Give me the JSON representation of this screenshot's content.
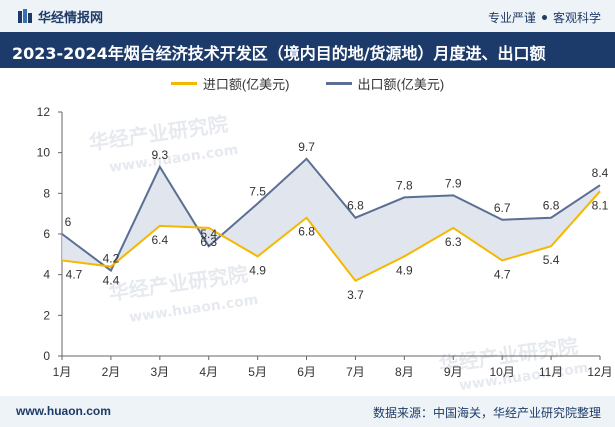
{
  "header": {
    "brand": "华经情报网",
    "slogan_left": "专业严谨",
    "slogan_right": "客观科学",
    "title": "2023-2024年烟台经济技术开发区（境内目的地/货源地）月度进、出口额"
  },
  "watermarks": [
    "华经产业研究院",
    "www.huaon.com"
  ],
  "footer": {
    "website": "www.huaon.com",
    "source": "数据来源：中国海关，华经产业研究院整理"
  },
  "colors": {
    "import": "#f5b800",
    "export": "#5b6f94",
    "fill": "#d9dee8",
    "header_bg": "#1c3b6a"
  },
  "chart_data": {
    "type": "line",
    "categories": [
      "1月",
      "2月",
      "3月",
      "4月",
      "5月",
      "6月",
      "7月",
      "8月",
      "9月",
      "10月",
      "11月",
      "12月"
    ],
    "series": [
      {
        "name": "进口额(亿美元)",
        "values": [
          4.7,
          4.4,
          6.4,
          6.3,
          4.9,
          6.8,
          3.7,
          4.9,
          6.3,
          4.7,
          5.4,
          8.1
        ]
      },
      {
        "name": "出口额(亿美元)",
        "values": [
          6,
          4.2,
          9.3,
          5.4,
          7.5,
          9.7,
          6.8,
          7.8,
          7.9,
          6.7,
          6.8,
          8.4
        ]
      }
    ],
    "ylim": [
      0,
      12
    ],
    "yticks": [
      0,
      2,
      4,
      6,
      8,
      10,
      12
    ],
    "grid": false,
    "legend": "top-center",
    "fill_between": true
  }
}
